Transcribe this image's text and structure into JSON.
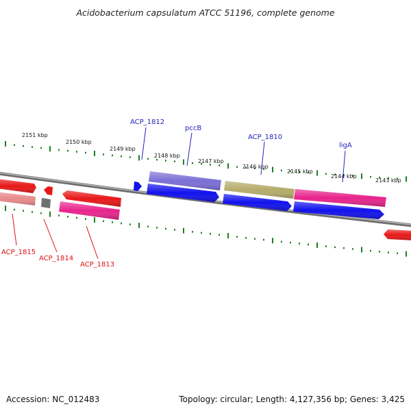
{
  "header": {
    "title": "Acidobacterium capsulatum ATCC 51196, complete genome"
  },
  "footer": {
    "accession": "Accession: NC_012483",
    "topology": "Topology: circular; Length: 4,127,356 bp; Genes: 3,425"
  },
  "colors": {
    "backbone": "#7d7d7d",
    "tick": "#1e7d1e",
    "label_top": "#2222bb",
    "label_bottom": "#dd1111"
  },
  "ruler": {
    "labels": [
      "2151 kbp",
      "2150 kbp",
      "2149 kbp",
      "2148 kbp",
      "2147 kbp",
      "2146 kbp",
      "2145 kbp",
      "2144 kbp",
      "2143 kbp"
    ]
  },
  "gene_labels": [
    {
      "id": "ACP_1812",
      "text": "ACP_1812",
      "strand": "top"
    },
    {
      "id": "pccB",
      "text": "pccB",
      "strand": "top"
    },
    {
      "id": "ACP_1810",
      "text": "ACP_1810",
      "strand": "top"
    },
    {
      "id": "ligA",
      "text": "ligA",
      "strand": "top"
    },
    {
      "id": "ACP_1815",
      "text": "ACP_1815",
      "strand": "bottom"
    },
    {
      "id": "ACP_1814",
      "text": "ACP_1814",
      "strand": "bottom"
    },
    {
      "id": "ACP_1813",
      "text": "ACP_1813",
      "strand": "bottom"
    }
  ],
  "features": [
    {
      "name": "feature-red-left-arrow",
      "color": "#e81818"
    },
    {
      "name": "feature-red-small-arrow",
      "color": "#e81818"
    },
    {
      "name": "feature-pink-left-bar",
      "color": "#e88a8a"
    },
    {
      "name": "feature-gray-block",
      "color": "#707070"
    },
    {
      "name": "feature-red-large-arrow",
      "color": "#e81818"
    },
    {
      "name": "feature-magenta-bar-acp1813",
      "color": "#e8248c"
    },
    {
      "name": "feature-blue-small-arrow",
      "color": "#1111ee"
    },
    {
      "name": "feature-purple-bar-pccb",
      "color": "#7b6fd6"
    },
    {
      "name": "feature-blue-arrow-1",
      "color": "#1111ee"
    },
    {
      "name": "feature-olive-bar-acp1810",
      "color": "#b5ac6a"
    },
    {
      "name": "feature-blue-arrow-2",
      "color": "#1111ee"
    },
    {
      "name": "feature-magenta-bar-liga",
      "color": "#e8248c"
    },
    {
      "name": "feature-blue-arrow-3",
      "color": "#1111ee"
    },
    {
      "name": "feature-red-right-edge",
      "color": "#e81818"
    }
  ]
}
